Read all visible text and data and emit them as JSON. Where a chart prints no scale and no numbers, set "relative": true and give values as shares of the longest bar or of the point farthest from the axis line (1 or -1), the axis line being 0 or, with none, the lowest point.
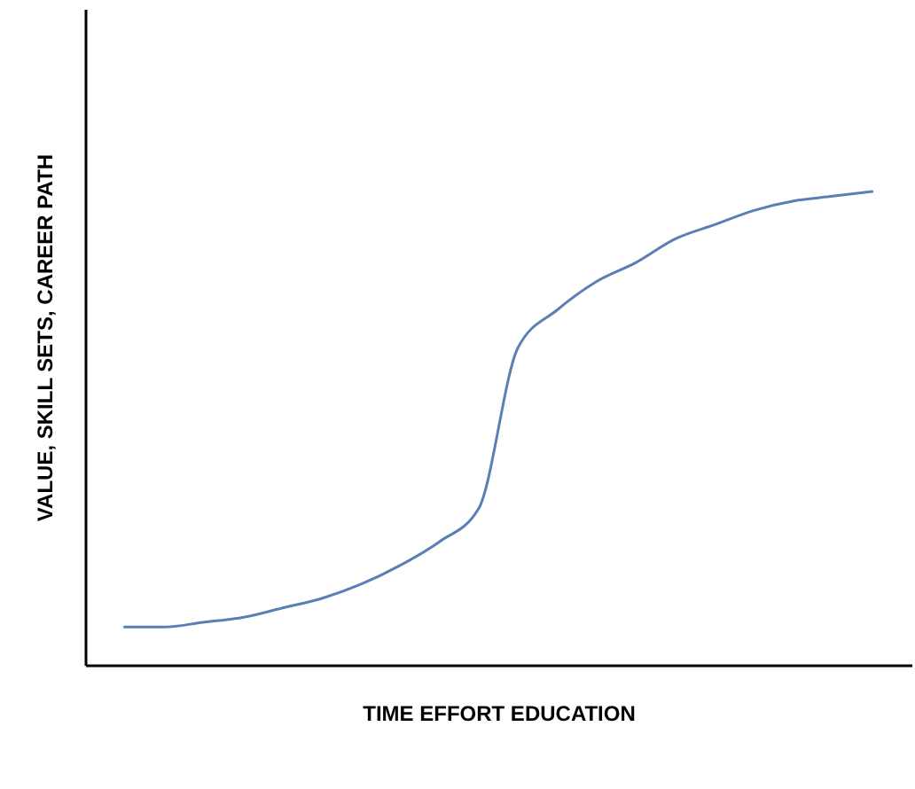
{
  "chart_data": {
    "type": "line",
    "relative": true,
    "xlabel": "TIME EFFORT EDUCATION",
    "ylabel": "VALUE, SKILL SETS, CAREER PATH",
    "tick_labels": false,
    "grid": false,
    "marker": "none",
    "line_style": "solid",
    "categories": [
      null,
      null,
      null,
      null,
      null,
      null,
      null,
      null,
      null,
      null,
      null,
      null,
      null,
      null,
      null,
      null,
      null,
      null,
      null,
      null
    ],
    "series": [
      {
        "color": "#5b7fb5",
        "values": [
          0.08,
          0.08,
          0.09,
          0.1,
          0.12,
          0.14,
          0.17,
          0.21,
          0.26,
          0.33,
          0.67,
          0.75,
          0.81,
          0.85,
          0.9,
          0.93,
          0.96,
          0.98,
          0.99,
          1
        ]
      }
    ]
  }
}
